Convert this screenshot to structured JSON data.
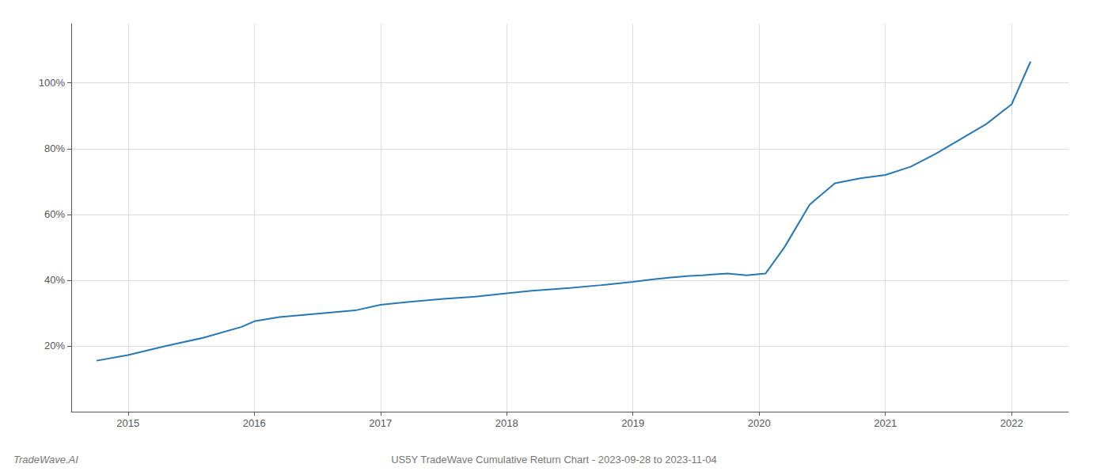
{
  "chart_data": {
    "type": "line",
    "title": "US5Y TradeWave Cumulative Return Chart - 2023-09-28 to 2023-11-04",
    "annotations": [
      "TradeWave.AI"
    ],
    "color": "#2778B5",
    "x": [
      2014.75,
      2015.0,
      2015.3,
      2015.6,
      2015.9,
      2016.0,
      2016.2,
      2016.5,
      2016.8,
      2017.0,
      2017.25,
      2017.5,
      2017.75,
      2018.0,
      2018.2,
      2018.5,
      2018.75,
      2019.0,
      2019.15,
      2019.3,
      2019.45,
      2019.55,
      2019.65,
      2019.75,
      2019.9,
      2020.05,
      2020.2,
      2020.4,
      2020.6,
      2020.8,
      2021.0,
      2021.2,
      2021.4,
      2021.6,
      2021.8,
      2022.0,
      2022.15
    ],
    "values": [
      0.155,
      0.172,
      0.2,
      0.225,
      0.258,
      0.275,
      0.288,
      0.298,
      0.308,
      0.325,
      0.335,
      0.343,
      0.35,
      0.36,
      0.368,
      0.376,
      0.385,
      0.395,
      0.402,
      0.408,
      0.413,
      0.415,
      0.418,
      0.42,
      0.415,
      0.42,
      0.5,
      0.63,
      0.695,
      0.71,
      0.72,
      0.745,
      0.785,
      0.83,
      0.875,
      0.935,
      1.065
    ],
    "xlim": [
      2014.55,
      2022.45
    ],
    "ylim": [
      0.0,
      1.18
    ],
    "xticks": [
      2015,
      2016,
      2017,
      2018,
      2019,
      2020,
      2021,
      2022
    ],
    "yticks": [
      {
        "value": 0.2,
        "label": "20%"
      },
      {
        "value": 0.4,
        "label": "40%"
      },
      {
        "value": 0.6,
        "label": "60%"
      },
      {
        "value": 0.8,
        "label": "80%"
      },
      {
        "value": 1.0,
        "label": "100%"
      }
    ],
    "grid": true
  }
}
